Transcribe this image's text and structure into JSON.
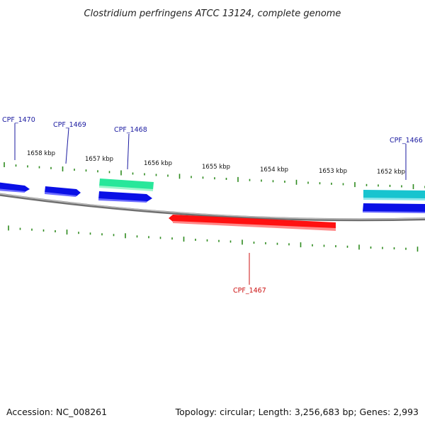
{
  "title": "Clostridium perfringens ATCC 13124, complete genome",
  "footer": {
    "accession": "Accession: NC_008261",
    "stats": "Topology: circular; Length: 3,256,683 bp; Genes: 2,993"
  },
  "kbp_labels": [
    "1658 kbp",
    "1657 kbp",
    "1656 kbp",
    "1655 kbp",
    "1654 kbp",
    "1653 kbp",
    "1652 kbp"
  ],
  "colors": {
    "backbone": "#8c8c8c",
    "tick": "#2e8b1e",
    "forward_gene": "#0a10e6",
    "cds_green": "#28e79a",
    "cds_cyan": "#17c4cf",
    "reverse_gene": "#ff1010",
    "label_blue": "#1a1aa0",
    "label_red": "#cc1010"
  },
  "genes": [
    {
      "id": "CPF_1470",
      "strand": "forward",
      "color": "blue"
    },
    {
      "id": "CPF_1469",
      "strand": "forward",
      "color": "blue"
    },
    {
      "id": "CPF_1468",
      "strand": "forward",
      "color": "blue+green"
    },
    {
      "id": "CPF_1467",
      "strand": "reverse",
      "color": "red"
    },
    {
      "id": "CPF_1466",
      "strand": "forward",
      "color": "blue+cyan"
    }
  ]
}
